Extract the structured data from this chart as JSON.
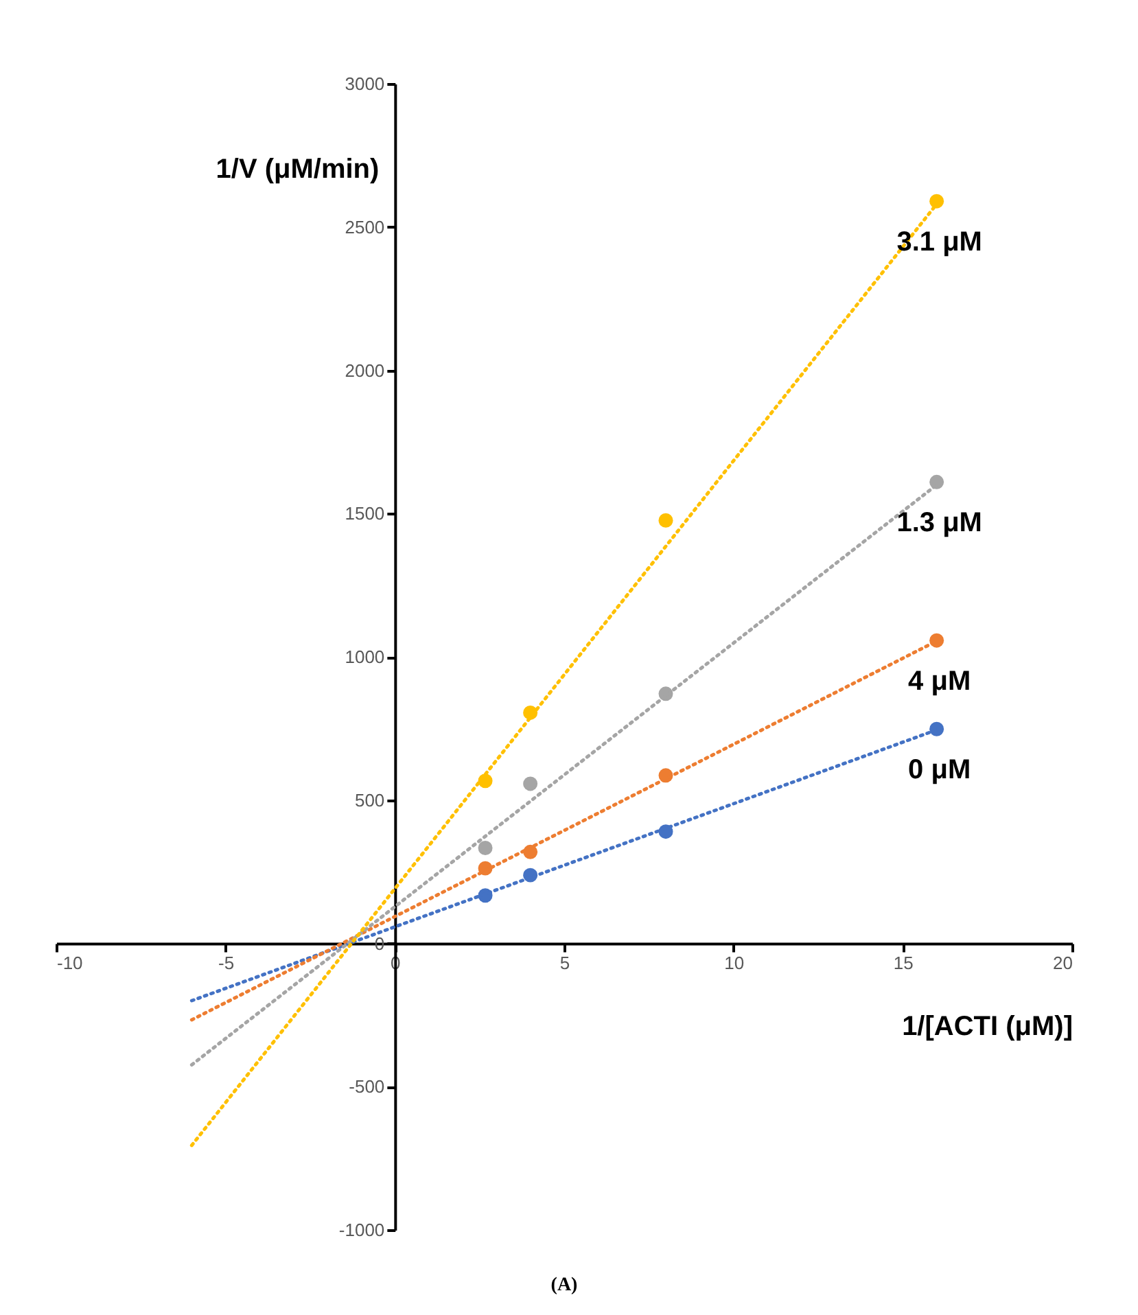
{
  "chart_data": {
    "type": "scatter",
    "xlabel": "1/[ACTI (μM)]",
    "ylabel": "1/V (μM/min)",
    "xlim": [
      -10,
      20
    ],
    "xticks": [
      -10,
      -5,
      0,
      5,
      10,
      15,
      20
    ],
    "ylim": [
      -1000,
      3000
    ],
    "yticks": [
      -1000,
      -500,
      0,
      500,
      1000,
      1500,
      2000,
      2500,
      3000
    ],
    "grid": false,
    "marker": "circle",
    "line_style": "dotted",
    "annotations": [
      "(A)"
    ],
    "series": [
      {
        "name": "0 μM",
        "color": "#4472c4",
        "x": [
          2.67,
          4,
          8,
          16
        ],
        "values": [
          167,
          238,
          390,
          748
        ]
      },
      {
        "name": "4 μM",
        "color": "#ed7d31",
        "x": [
          2.67,
          4,
          8,
          16
        ],
        "values": [
          262,
          319,
          586,
          1057
        ]
      },
      {
        "name": "1.3 μM",
        "color": "#a5a5a5",
        "x": [
          2.67,
          4,
          8,
          16
        ],
        "values": [
          333,
          557,
          871,
          1610
        ]
      },
      {
        "name": "3.1 μM",
        "color": "#ffc000",
        "x": [
          2.67,
          4,
          8,
          16
        ],
        "values": [
          567,
          805,
          1476,
          2590
        ]
      },
      {
        "type": "line",
        "marker": "none",
        "color": "#4472c4",
        "x": [
          -6,
          16
        ],
        "values": [
          -200,
          745
        ]
      },
      {
        "type": "line",
        "marker": "none",
        "color": "#ed7d31",
        "x": [
          -6,
          16
        ],
        "values": [
          -267,
          1055
        ]
      },
      {
        "type": "line",
        "marker": "none",
        "color": "#a5a5a5",
        "x": [
          -6,
          16
        ],
        "values": [
          -424,
          1600
        ]
      },
      {
        "type": "line",
        "marker": "none",
        "color": "#ffc000",
        "x": [
          -6,
          16
        ],
        "values": [
          -705,
          2580
        ]
      }
    ]
  }
}
